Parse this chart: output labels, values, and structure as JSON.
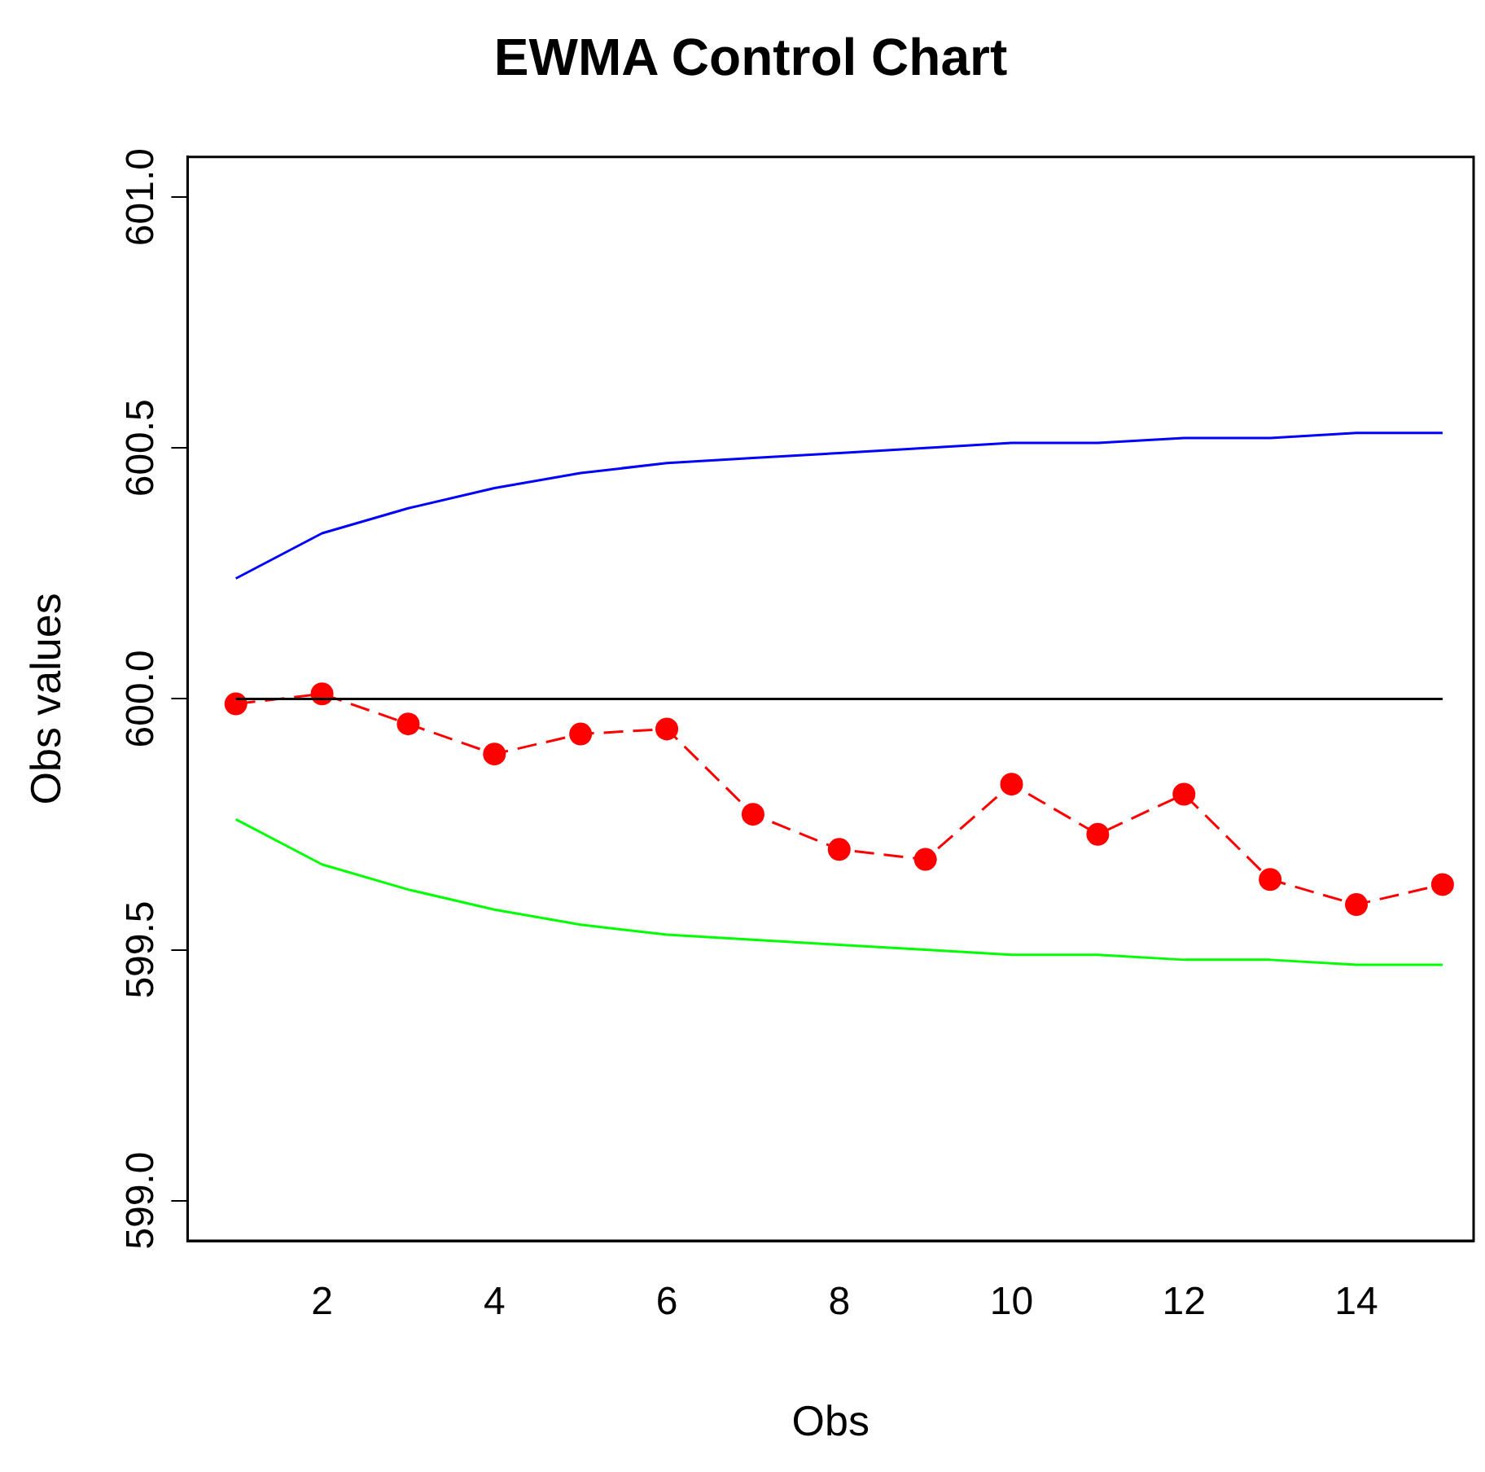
{
  "chart_data": {
    "type": "line",
    "title": "EWMA Control Chart",
    "xlabel": "Obs",
    "ylabel": "Obs values",
    "x": [
      1,
      2,
      3,
      4,
      5,
      6,
      7,
      8,
      9,
      10,
      11,
      12,
      13,
      14,
      15
    ],
    "series": [
      {
        "color": "#0000ff",
        "marker": "none",
        "line_style": "solid",
        "values": [
          600.24,
          600.33,
          600.38,
          600.42,
          600.45,
          600.47,
          600.48,
          600.49,
          600.5,
          600.51,
          600.51,
          600.52,
          600.52,
          600.53,
          600.53
        ]
      },
      {
        "color": "#00ff00",
        "marker": "none",
        "line_style": "solid",
        "values": [
          599.76,
          599.67,
          599.62,
          599.58,
          599.55,
          599.53,
          599.52,
          599.51,
          599.5,
          599.49,
          599.49,
          599.48,
          599.48,
          599.47,
          599.47
        ]
      },
      {
        "color": "#000000",
        "marker": "none",
        "line_style": "solid",
        "x": [
          1,
          15
        ],
        "values": [
          600,
          600
        ]
      },
      {
        "color": "#ff0000",
        "marker": "circle",
        "line_style": "dashed",
        "values": [
          599.99,
          600.01,
          599.95,
          599.89,
          599.93,
          599.94,
          599.77,
          599.7,
          599.68,
          599.83,
          599.73,
          599.81,
          599.64,
          599.59,
          599.63
        ]
      }
    ],
    "xlim": [
      0.44,
      15.36
    ],
    "xticks": [
      2,
      4,
      6,
      8,
      10,
      12,
      14
    ],
    "ylim": [
      598.92,
      601.08
    ],
    "yticks": [
      {
        "value": 599,
        "label": "599.0"
      },
      {
        "value": 599.5,
        "label": "599.5"
      },
      {
        "value": 600,
        "label": "600.0"
      },
      {
        "value": 600.5,
        "label": "600.5"
      },
      {
        "value": 601,
        "label": "601.0"
      }
    ],
    "grid": false,
    "legend": false
  }
}
